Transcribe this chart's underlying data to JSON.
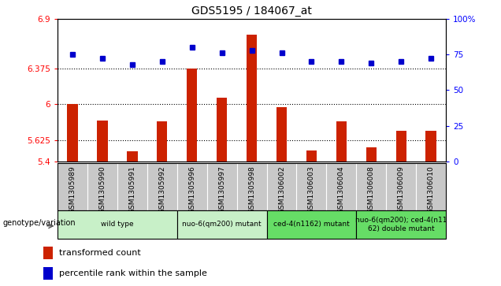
{
  "title": "GDS5195 / 184067_at",
  "samples": [
    "GSM1305989",
    "GSM1305990",
    "GSM1305991",
    "GSM1305992",
    "GSM1305996",
    "GSM1305997",
    "GSM1305998",
    "GSM1306002",
    "GSM1306003",
    "GSM1306004",
    "GSM1306008",
    "GSM1306009",
    "GSM1306010"
  ],
  "transformed_count": [
    6.0,
    5.83,
    5.51,
    5.82,
    6.38,
    6.07,
    6.73,
    5.97,
    5.52,
    5.82,
    5.55,
    5.72,
    5.72
  ],
  "percentile_rank": [
    75,
    72,
    68,
    70,
    80,
    76,
    78,
    76,
    70,
    70,
    69,
    70,
    72
  ],
  "ylim_left": [
    5.4,
    6.9
  ],
  "ylim_right": [
    0,
    100
  ],
  "yticks_left": [
    5.4,
    5.625,
    6.0,
    6.375,
    6.9
  ],
  "yticks_left_labels": [
    "5.4",
    "5.625",
    "6",
    "6.375",
    "6.9"
  ],
  "yticks_right": [
    0,
    25,
    50,
    75,
    100
  ],
  "yticks_right_labels": [
    "0",
    "25",
    "50",
    "75",
    "100%"
  ],
  "hlines": [
    5.625,
    6.0,
    6.375
  ],
  "bar_color": "#CC2200",
  "dot_color": "#0000CC",
  "groups": [
    {
      "label": "wild type",
      "start": 0,
      "end": 3,
      "color": "#c8f0c8"
    },
    {
      "label": "nuo-6(qm200) mutant",
      "start": 4,
      "end": 6,
      "color": "#c8f0c8"
    },
    {
      "label": "ced-4(n1162) mutant",
      "start": 7,
      "end": 9,
      "color": "#66dd66"
    },
    {
      "label": "nuo-6(qm200); ced-4(n11\n62) double mutant",
      "start": 10,
      "end": 12,
      "color": "#66dd66"
    }
  ],
  "genotype_label": "genotype/variation",
  "legend_bar_label": "transformed count",
  "legend_dot_label": "percentile rank within the sample",
  "xtick_bg_color": "#c8c8c8",
  "plot_bg_color": "#ffffff"
}
